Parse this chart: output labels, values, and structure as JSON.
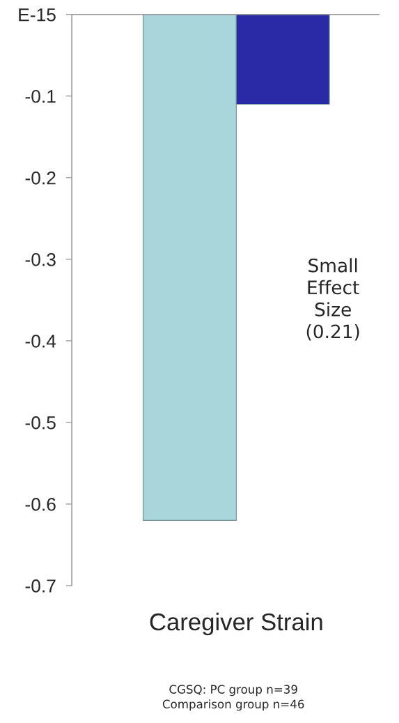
{
  "chart_data": {
    "type": "bar",
    "categories": [
      "Caregiver Strain"
    ],
    "series": [
      {
        "color": "#a9d6da",
        "values": [
          -0.62
        ]
      },
      {
        "color": "#2a2aa6",
        "values": [
          -0.11
        ]
      }
    ],
    "ylim": [
      -0.7,
      0
    ],
    "yticks": [
      {
        "value": 0,
        "label": "E-15"
      },
      -0.1,
      -0.2,
      -0.3,
      -0.4,
      -0.5,
      -0.6,
      -0.7
    ],
    "grid": false,
    "legend": false,
    "annotations": [
      "Small\nEffect\nSize\n(0.21)",
      "CGSQ: PC group n=39\nComparison group n=46"
    ]
  }
}
